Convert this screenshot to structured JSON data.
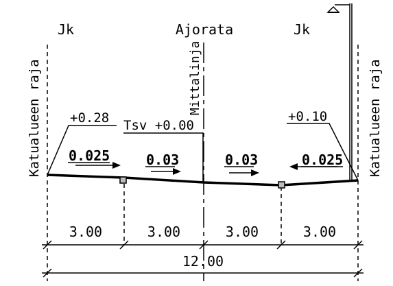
{
  "sections": {
    "left_walkway": "Jk",
    "carriageway": "Ajorata",
    "right_walkway": "Jk"
  },
  "labels": {
    "boundary_left": "Katualueen raja",
    "boundary_right": "Katualueen raja",
    "centerline": "Mittalinja",
    "elevation_left": "+0.28",
    "elevation_center": "Tsv +0.00",
    "elevation_right": "+0.10"
  },
  "slopes": {
    "left_walkway": "0.025",
    "left_lane": "0.03",
    "right_lane": "0.03",
    "right_walkway": "0.025"
  },
  "dimensions": {
    "segments": [
      "3.00",
      "3.00",
      "3.00",
      "3.00"
    ],
    "total": "12.00"
  }
}
